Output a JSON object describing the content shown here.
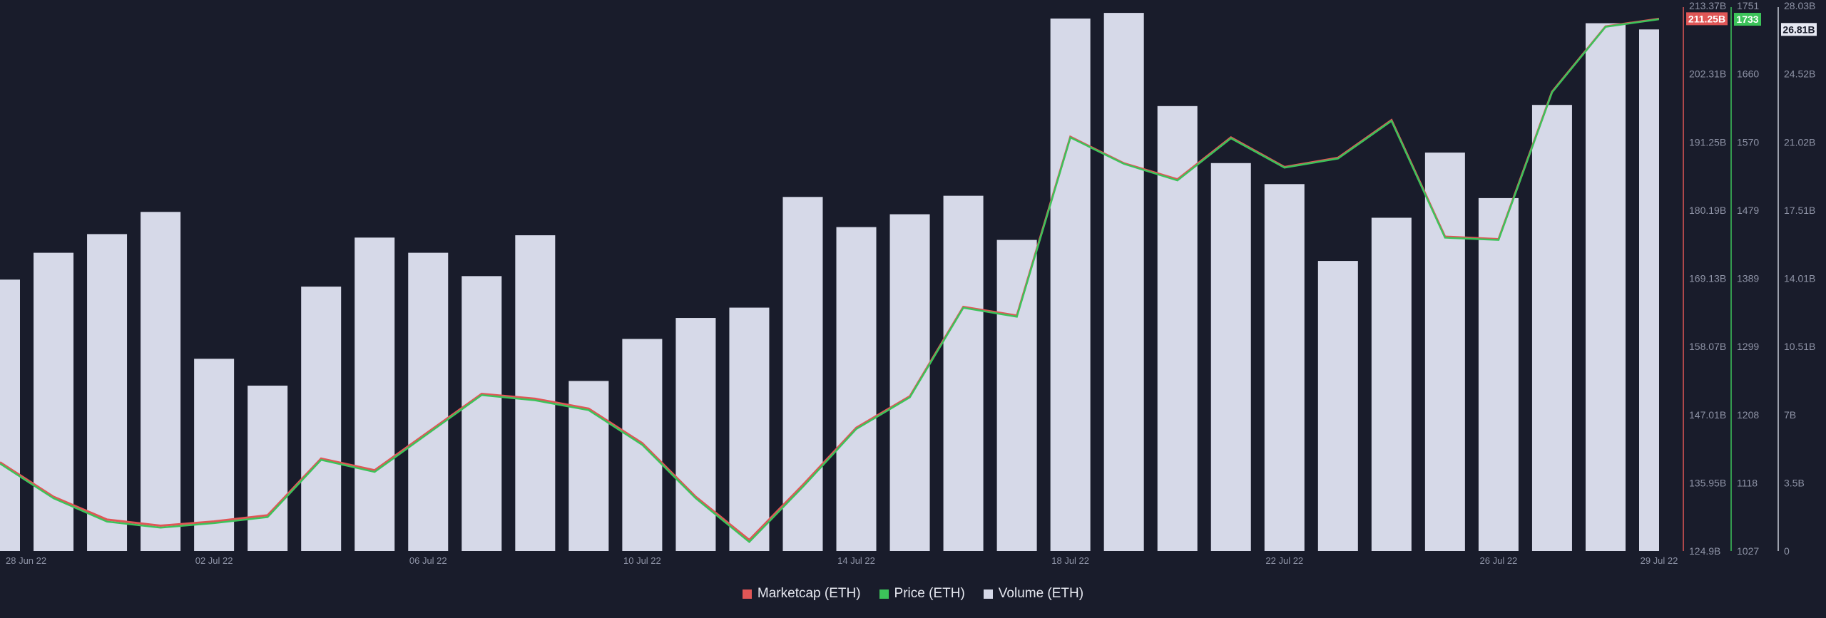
{
  "chart_data": {
    "type": "bar+line",
    "title": "",
    "categories": [
      "28 Jun 22",
      "29 Jun 22",
      "30 Jun 22",
      "01 Jul 22",
      "02 Jul 22",
      "03 Jul 22",
      "04 Jul 22",
      "05 Jul 22",
      "06 Jul 22",
      "07 Jul 22",
      "08 Jul 22",
      "09 Jul 22",
      "10 Jul 22",
      "11 Jul 22",
      "12 Jul 22",
      "13 Jul 22",
      "14 Jul 22",
      "15 Jul 22",
      "16 Jul 22",
      "17 Jul 22",
      "18 Jul 22",
      "19 Jul 22",
      "20 Jul 22",
      "21 Jul 22",
      "22 Jul 22",
      "23 Jul 22",
      "24 Jul 22",
      "25 Jul 22",
      "26 Jul 22",
      "27 Jul 22",
      "28 Jul 22",
      "29 Jul 22"
    ],
    "x_tick_labels": [
      {
        "index": 0,
        "label": "28 Jun 22"
      },
      {
        "index": 4,
        "label": "02 Jul 22"
      },
      {
        "index": 8,
        "label": "06 Jul 22"
      },
      {
        "index": 12,
        "label": "10 Jul 22"
      },
      {
        "index": 16,
        "label": "14 Jul 22"
      },
      {
        "index": 20,
        "label": "18 Jul 22"
      },
      {
        "index": 24,
        "label": "22 Jul 22"
      },
      {
        "index": 28,
        "label": "26 Jul 22"
      },
      {
        "index": 31,
        "label": "29 Jul 22"
      }
    ],
    "series": [
      {
        "name": "Marketcap (ETH)",
        "type": "line",
        "axis": "marketcap",
        "color": "#e05656",
        "values": [
          139.3,
          133.7,
          130.0,
          129.0,
          129.7,
          130.7,
          139.9,
          138.0,
          144.2,
          150.4,
          149.6,
          148.0,
          142.4,
          133.7,
          126.7,
          135.6,
          144.9,
          150.0,
          164.5,
          163.1,
          192.1,
          187.8,
          185.2,
          192.0,
          187.2,
          188.7,
          194.8,
          175.9,
          175.5,
          199.4,
          210.0,
          211.25
        ],
        "current_label": "211.25B"
      },
      {
        "name": "Price (ETH)",
        "type": "line",
        "axis": "price",
        "color": "#3cc35a",
        "values": [
          1143,
          1097,
          1066,
          1058,
          1064,
          1072,
          1148,
          1132,
          1183,
          1234,
          1227,
          1214,
          1168,
          1097,
          1039,
          1112,
          1189,
          1231,
          1350,
          1338,
          1576,
          1541,
          1519,
          1575,
          1536,
          1548,
          1598,
          1443,
          1440,
          1636,
          1723,
          1733
        ],
        "current_label": "1733"
      },
      {
        "name": "Volume (ETH)",
        "type": "bar",
        "axis": "volume",
        "color": "#d6d9e8",
        "values": [
          13.95,
          15.33,
          16.29,
          17.43,
          9.88,
          8.5,
          13.59,
          16.11,
          15.33,
          14.13,
          16.23,
          8.74,
          10.9,
          11.98,
          12.51,
          18.2,
          16.65,
          17.31,
          18.26,
          15.99,
          27.37,
          27.66,
          22.87,
          19.94,
          18.86,
          14.91,
          17.13,
          20.48,
          18.14,
          22.93,
          27.13,
          26.81
        ],
        "current_label": "26.81B"
      }
    ],
    "axes": {
      "marketcap": {
        "unit": "B",
        "ylim": [
          124.9,
          213.37
        ],
        "ticks": [
          "213.37B",
          "202.31B",
          "191.25B",
          "180.19B",
          "169.13B",
          "158.07B",
          "147.01B",
          "135.95B",
          "124.9B"
        ],
        "color": "#e05656"
      },
      "price": {
        "ylim": [
          1027,
          1751
        ],
        "ticks": [
          "1751",
          "1660",
          "1570",
          "1479",
          "1389",
          "1299",
          "1208",
          "1118",
          "1027"
        ],
        "color": "#3cc35a"
      },
      "volume": {
        "unit": "B",
        "ylim": [
          0,
          28.03
        ],
        "ticks": [
          "28.03B",
          "24.52B",
          "21.02B",
          "17.51B",
          "14.01B",
          "10.51B",
          "7B",
          "3.5B",
          "0"
        ],
        "color": "#d6d9e8"
      }
    },
    "legend_position": "bottom-center",
    "grid": false
  },
  "legend": [
    {
      "label": "Marketcap (ETH)",
      "color": "#e05656"
    },
    {
      "label": "Price (ETH)",
      "color": "#3cc35a"
    },
    {
      "label": "Volume (ETH)",
      "color": "#d6d9e8"
    }
  ]
}
